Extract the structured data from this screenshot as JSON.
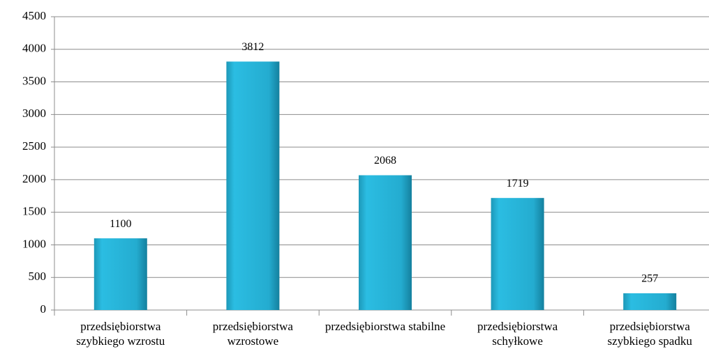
{
  "chart_data": {
    "type": "bar",
    "categories": [
      "przedsiębiorstwa szybkiego wzrostu",
      "przedsiębiorstwa wzrostowe",
      "przedsiębiorstwa stabilne",
      "przedsiębiorstwa schyłkowe",
      "przedsiębiorstwa szybkiego spadku"
    ],
    "values": [
      1100,
      3812,
      2068,
      1719,
      257
    ],
    "color": "#29b6d9",
    "ylim": [
      0,
      4500
    ],
    "yticks": [
      0,
      500,
      1000,
      1500,
      2000,
      2500,
      3000,
      3500,
      4000,
      4500
    ],
    "grid": true,
    "data_labels": true
  }
}
